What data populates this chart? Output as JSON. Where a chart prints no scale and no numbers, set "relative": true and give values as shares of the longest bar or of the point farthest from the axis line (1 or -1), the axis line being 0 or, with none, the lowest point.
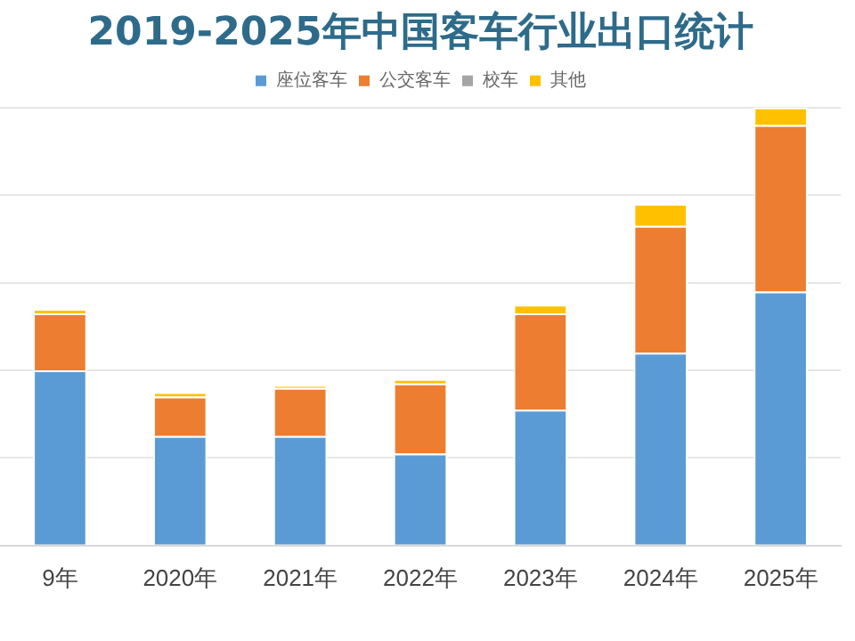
{
  "chart_data": {
    "type": "bar",
    "title": "2019-2025年中国客车行业出口统计",
    "categories": [
      "9年",
      "2020年",
      "2021年",
      "2022年",
      "2023年",
      "2024年",
      "2025年"
    ],
    "stacked": true,
    "relative": true,
    "grid": "y",
    "legend": "top",
    "series": [
      {
        "name": "座位客车",
        "color": "#5b9bd5",
        "values": [
          0.4,
          0.25,
          0.25,
          0.21,
          0.31,
          0.44,
          0.58
        ]
      },
      {
        "name": "公交客车",
        "color": "#ed7d31",
        "values": [
          0.13,
          0.09,
          0.11,
          0.16,
          0.22,
          0.29,
          0.38
        ]
      },
      {
        "name": "校车",
        "color": "#a5a5a5",
        "values": [
          0,
          0,
          0,
          0,
          0,
          0,
          0
        ]
      },
      {
        "name": "其他",
        "color": "#ffc000",
        "values": [
          0.01,
          0.01,
          0.005,
          0.01,
          0.02,
          0.05,
          0.04
        ]
      }
    ]
  }
}
